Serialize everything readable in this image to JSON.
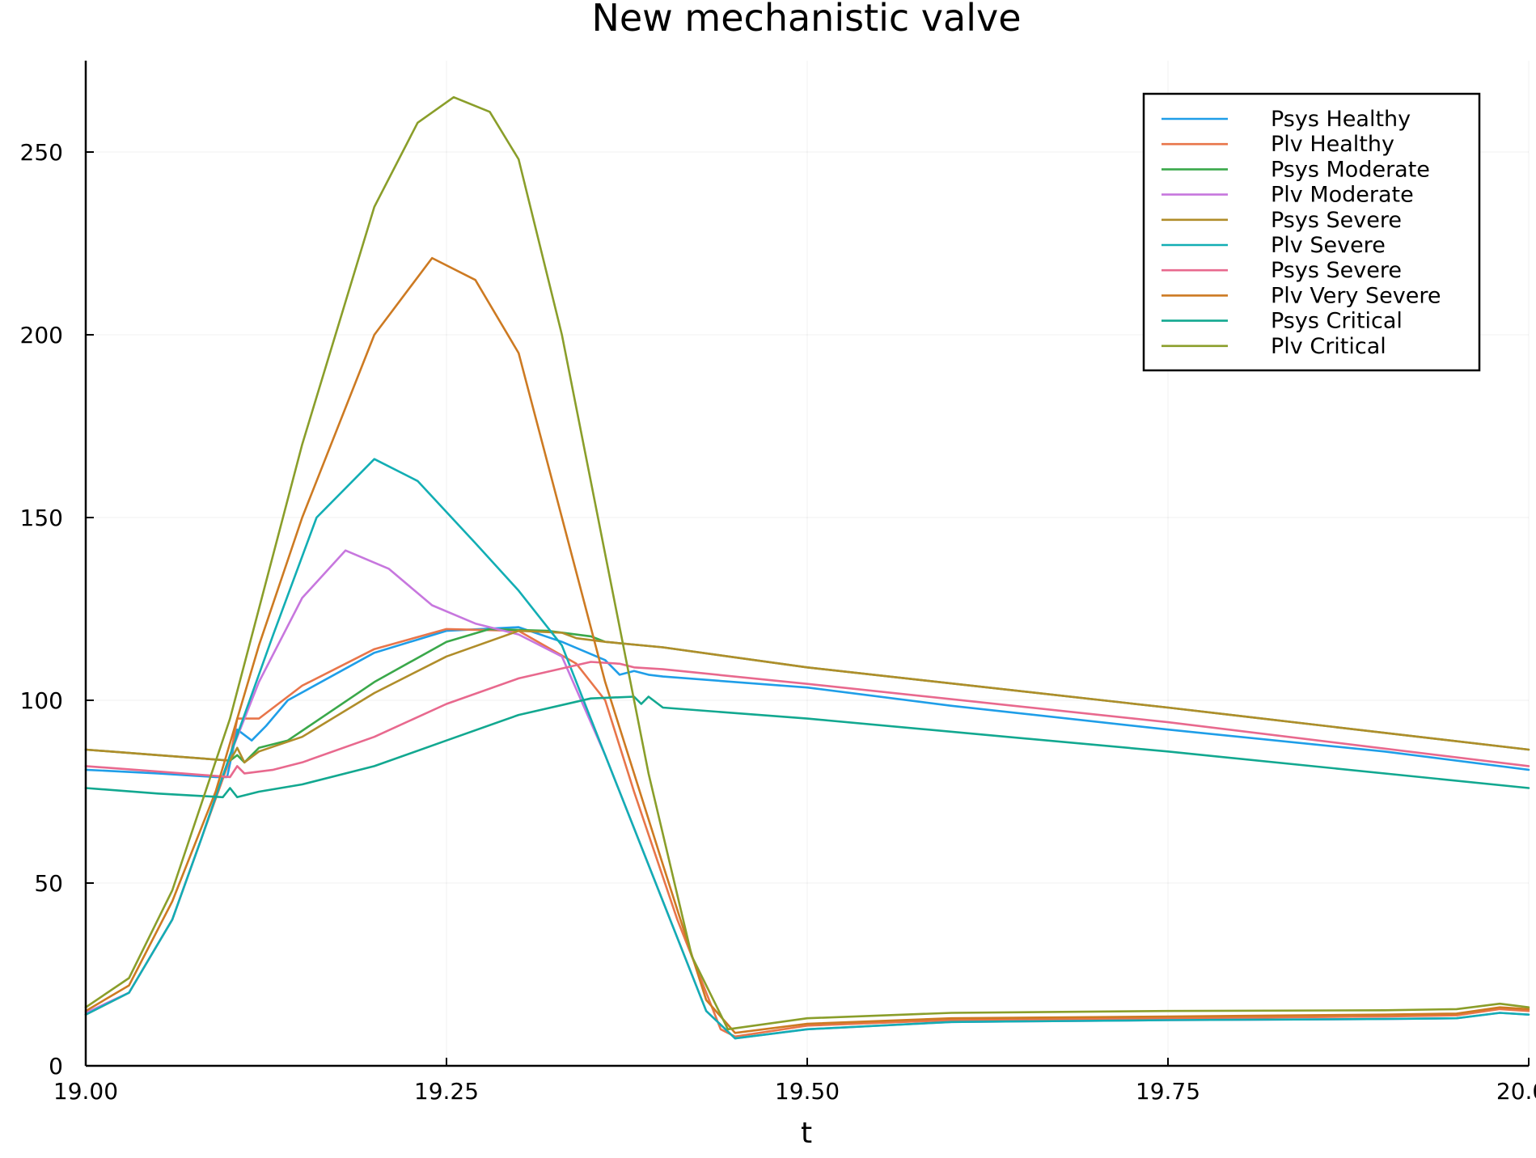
{
  "chart_data": {
    "type": "line",
    "title": "New mechanistic valve",
    "xlabel": "t",
    "ylabel": "",
    "xlim": [
      19.0,
      20.0
    ],
    "ylim": [
      0,
      275
    ],
    "xticks": [
      19.0,
      19.25,
      19.5,
      19.75,
      20.0
    ],
    "xtick_labels": [
      "19.00",
      "19.25",
      "19.50",
      "19.75",
      "20.00"
    ],
    "yticks": [
      0,
      50,
      100,
      150,
      200,
      250
    ],
    "ytick_labels": [
      "0",
      "50",
      "100",
      "150",
      "200",
      "250"
    ],
    "grid": true,
    "legend_position": "top-right",
    "series": [
      {
        "name": "Psys Healthy",
        "color": "#1f9ee8",
        "points": [
          [
            19.0,
            81
          ],
          [
            19.05,
            80
          ],
          [
            19.09,
            79
          ],
          [
            19.098,
            79
          ],
          [
            19.105,
            92
          ],
          [
            19.115,
            89
          ],
          [
            19.125,
            93
          ],
          [
            19.14,
            100
          ],
          [
            19.2,
            113
          ],
          [
            19.25,
            119
          ],
          [
            19.3,
            120
          ],
          [
            19.33,
            116
          ],
          [
            19.36,
            111
          ],
          [
            19.37,
            107
          ],
          [
            19.38,
            108
          ],
          [
            19.39,
            107
          ],
          [
            19.4,
            106.5
          ],
          [
            19.5,
            103.5
          ],
          [
            19.6,
            98.5
          ],
          [
            19.75,
            92
          ],
          [
            19.9,
            86
          ],
          [
            20.0,
            81
          ]
        ]
      },
      {
        "name": "Plv Healthy",
        "color": "#e8754a",
        "points": [
          [
            19.0,
            14
          ],
          [
            19.03,
            20
          ],
          [
            19.06,
            40
          ],
          [
            19.08,
            62
          ],
          [
            19.1,
            84
          ],
          [
            19.105,
            95
          ],
          [
            19.12,
            95
          ],
          [
            19.15,
            104
          ],
          [
            19.2,
            114
          ],
          [
            19.25,
            119.5
          ],
          [
            19.3,
            119
          ],
          [
            19.34,
            110
          ],
          [
            19.36,
            100
          ],
          [
            19.38,
            75
          ],
          [
            19.41,
            40
          ],
          [
            19.44,
            10
          ],
          [
            19.45,
            8
          ],
          [
            19.5,
            11
          ],
          [
            19.6,
            12.5
          ],
          [
            19.75,
            13
          ],
          [
            19.9,
            13.5
          ],
          [
            19.95,
            13.8
          ],
          [
            19.98,
            15.5
          ],
          [
            20.0,
            15
          ]
        ]
      },
      {
        "name": "Psys Moderate",
        "color": "#3aa84a",
        "points": [
          [
            19.0,
            86.5
          ],
          [
            19.05,
            85
          ],
          [
            19.1,
            83.5
          ],
          [
            19.105,
            85
          ],
          [
            19.11,
            83
          ],
          [
            19.12,
            87
          ],
          [
            19.14,
            89
          ],
          [
            19.2,
            105
          ],
          [
            19.25,
            116
          ],
          [
            19.28,
            119.5
          ],
          [
            19.32,
            119
          ],
          [
            19.35,
            117.5
          ],
          [
            19.36,
            116
          ],
          [
            19.4,
            114.5
          ],
          [
            19.5,
            109
          ],
          [
            19.75,
            98
          ],
          [
            20.0,
            86.5
          ]
        ]
      },
      {
        "name": "Plv Moderate",
        "color": "#c777de",
        "points": [
          [
            19.0,
            14.5
          ],
          [
            19.03,
            20
          ],
          [
            19.06,
            40
          ],
          [
            19.08,
            62
          ],
          [
            19.1,
            85
          ],
          [
            19.12,
            105
          ],
          [
            19.15,
            128
          ],
          [
            19.18,
            141
          ],
          [
            19.21,
            136
          ],
          [
            19.24,
            126
          ],
          [
            19.27,
            121
          ],
          [
            19.3,
            118
          ],
          [
            19.33,
            112
          ],
          [
            19.36,
            85
          ],
          [
            19.4,
            45
          ],
          [
            19.43,
            15
          ],
          [
            19.45,
            7.5
          ],
          [
            19.5,
            10
          ],
          [
            19.6,
            12
          ],
          [
            19.75,
            12.5
          ],
          [
            19.9,
            12.8
          ],
          [
            19.95,
            13
          ],
          [
            19.98,
            14.5
          ],
          [
            20.0,
            14
          ]
        ]
      },
      {
        "name": "Psys Severe",
        "color": "#b08d2a",
        "points": [
          [
            19.0,
            86.5
          ],
          [
            19.05,
            85
          ],
          [
            19.1,
            83.5
          ],
          [
            19.105,
            87
          ],
          [
            19.11,
            83
          ],
          [
            19.12,
            86
          ],
          [
            19.15,
            90
          ],
          [
            19.2,
            102
          ],
          [
            19.25,
            112
          ],
          [
            19.3,
            119
          ],
          [
            19.33,
            118.5
          ],
          [
            19.34,
            117
          ],
          [
            19.36,
            116
          ],
          [
            19.4,
            114.5
          ],
          [
            19.5,
            109
          ],
          [
            19.75,
            98
          ],
          [
            20.0,
            86.5
          ]
        ]
      },
      {
        "name": "Plv Severe",
        "color": "#12aeb4",
        "points": [
          [
            19.0,
            14
          ],
          [
            19.03,
            20
          ],
          [
            19.06,
            40
          ],
          [
            19.08,
            62
          ],
          [
            19.1,
            85
          ],
          [
            19.13,
            118
          ],
          [
            19.16,
            150
          ],
          [
            19.2,
            166
          ],
          [
            19.23,
            160
          ],
          [
            19.27,
            143
          ],
          [
            19.3,
            130
          ],
          [
            19.33,
            115
          ],
          [
            19.36,
            85
          ],
          [
            19.4,
            45
          ],
          [
            19.43,
            15
          ],
          [
            19.45,
            7.5
          ],
          [
            19.5,
            10
          ],
          [
            19.6,
            12
          ],
          [
            19.75,
            12.5
          ],
          [
            19.9,
            12.8
          ],
          [
            19.95,
            13
          ],
          [
            19.98,
            14.5
          ],
          [
            20.0,
            14
          ]
        ]
      },
      {
        "name": "Psys Severe",
        "color": "#e8698e",
        "points": [
          [
            19.0,
            82
          ],
          [
            19.05,
            80.5
          ],
          [
            19.1,
            79
          ],
          [
            19.105,
            82
          ],
          [
            19.11,
            80
          ],
          [
            19.13,
            81
          ],
          [
            19.15,
            83
          ],
          [
            19.2,
            90
          ],
          [
            19.25,
            99
          ],
          [
            19.3,
            106
          ],
          [
            19.35,
            110.5
          ],
          [
            19.37,
            110
          ],
          [
            19.38,
            109
          ],
          [
            19.4,
            108.5
          ],
          [
            19.5,
            104.5
          ],
          [
            19.75,
            94
          ],
          [
            20.0,
            82
          ]
        ]
      },
      {
        "name": "Plv Very Severe",
        "color": "#cd7a22",
        "points": [
          [
            19.0,
            15
          ],
          [
            19.03,
            22
          ],
          [
            19.06,
            45
          ],
          [
            19.09,
            75
          ],
          [
            19.12,
            115
          ],
          [
            19.15,
            150
          ],
          [
            19.2,
            200
          ],
          [
            19.24,
            221
          ],
          [
            19.27,
            215
          ],
          [
            19.3,
            195
          ],
          [
            19.33,
            150
          ],
          [
            19.36,
            105
          ],
          [
            19.4,
            55
          ],
          [
            19.43,
            18
          ],
          [
            19.45,
            9
          ],
          [
            19.5,
            11.5
          ],
          [
            19.6,
            13
          ],
          [
            19.75,
            13.5
          ],
          [
            19.9,
            14
          ],
          [
            19.95,
            14.3
          ],
          [
            19.98,
            16
          ],
          [
            20.0,
            15.5
          ]
        ]
      },
      {
        "name": "Psys Critical",
        "color": "#12a890",
        "points": [
          [
            19.0,
            76
          ],
          [
            19.05,
            74.5
          ],
          [
            19.095,
            73.5
          ],
          [
            19.1,
            76
          ],
          [
            19.105,
            73.5
          ],
          [
            19.12,
            75
          ],
          [
            19.15,
            77
          ],
          [
            19.2,
            82
          ],
          [
            19.25,
            89
          ],
          [
            19.3,
            96
          ],
          [
            19.35,
            100.5
          ],
          [
            19.38,
            101
          ],
          [
            19.385,
            99
          ],
          [
            19.39,
            101
          ],
          [
            19.4,
            98
          ],
          [
            19.5,
            95
          ],
          [
            19.75,
            86
          ],
          [
            20.0,
            76
          ]
        ]
      },
      {
        "name": "Plv Critical",
        "color": "#8a9e2a",
        "points": [
          [
            19.0,
            16
          ],
          [
            19.03,
            24
          ],
          [
            19.06,
            48
          ],
          [
            19.1,
            95
          ],
          [
            19.15,
            170
          ],
          [
            19.2,
            235
          ],
          [
            19.23,
            258
          ],
          [
            19.255,
            265
          ],
          [
            19.28,
            261
          ],
          [
            19.3,
            248
          ],
          [
            19.33,
            200
          ],
          [
            19.36,
            140
          ],
          [
            19.39,
            80
          ],
          [
            19.42,
            30
          ],
          [
            19.445,
            10
          ],
          [
            19.5,
            13
          ],
          [
            19.6,
            14.5
          ],
          [
            19.75,
            15
          ],
          [
            19.9,
            15.2
          ],
          [
            19.95,
            15.5
          ],
          [
            19.98,
            17
          ],
          [
            20.0,
            16
          ]
        ]
      }
    ]
  }
}
